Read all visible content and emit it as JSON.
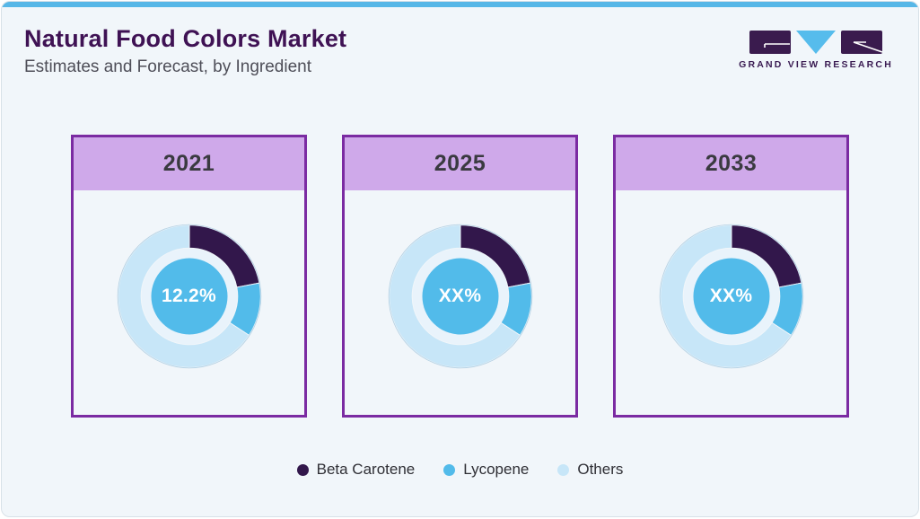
{
  "header": {
    "title": "Natural Food Colors Market",
    "subtitle": "Estimates and Forecast, by Ingredient",
    "logo_text": "GRAND VIEW RESEARCH"
  },
  "colors": {
    "accent_bar": "#57b7e7",
    "page_bg": "#f1f6fa",
    "title_text": "#3f1254",
    "card_border": "#7b2ba2",
    "card_header_bg": "#cfa9ea",
    "beta_carotene": "#32174b",
    "lycopene": "#52bbea",
    "others": "#c7e6f8",
    "inner_ring": "#e9f3fb",
    "center_circle": "#52bbea",
    "logo_dark": "#3a1b4e",
    "logo_blue": "#56bcec"
  },
  "chart_data": [
    {
      "type": "pie",
      "title": "2021",
      "center_label": "12.2%",
      "categories": [
        "Beta Carotene",
        "Lycopene",
        "Others"
      ],
      "values": [
        22,
        12.2,
        65.8
      ],
      "legend_position": "bottom"
    },
    {
      "type": "pie",
      "title": "2025",
      "center_label": "XX%",
      "categories": [
        "Beta Carotene",
        "Lycopene",
        "Others"
      ],
      "values": [
        22,
        12.2,
        65.8
      ],
      "legend_position": "bottom"
    },
    {
      "type": "pie",
      "title": "2033",
      "center_label": "XX%",
      "categories": [
        "Beta Carotene",
        "Lycopene",
        "Others"
      ],
      "values": [
        22,
        12.2,
        65.8
      ],
      "legend_position": "bottom"
    }
  ],
  "legend": {
    "items": [
      {
        "label": "Beta Carotene",
        "color": "#32174b"
      },
      {
        "label": "Lycopene",
        "color": "#52bbea"
      },
      {
        "label": "Others",
        "color": "#c7e6f8"
      }
    ]
  }
}
